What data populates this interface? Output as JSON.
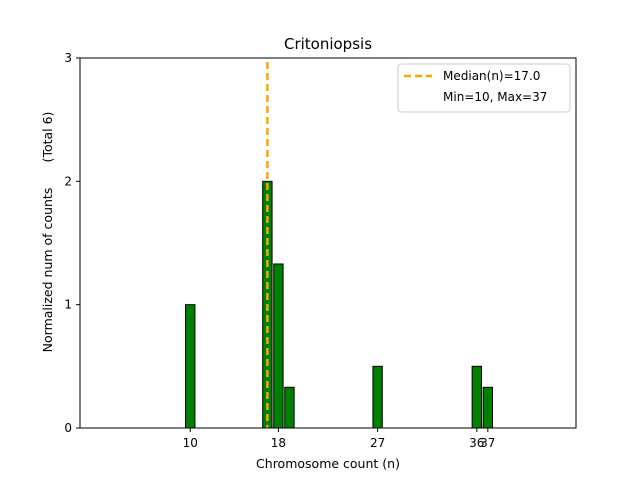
{
  "chart_data": {
    "type": "bar",
    "title": "Critoniopsis",
    "xlabel": "Chromosome count (n)",
    "ylabel": "Normalized num of counts",
    "ylabel_note": "(Total 6)",
    "xlim": [
      0,
      45
    ],
    "ylim": [
      0,
      3
    ],
    "x_ticks": [
      10,
      18,
      27,
      36,
      37
    ],
    "y_ticks": [
      0,
      1,
      2,
      3
    ],
    "bar_color": "#008000",
    "bar_edge_color": "#000000",
    "bars": [
      {
        "x": 10,
        "value": 1.0
      },
      {
        "x": 17,
        "value": 2.0
      },
      {
        "x": 18,
        "value": 1.33
      },
      {
        "x": 19,
        "value": 0.33
      },
      {
        "x": 27,
        "value": 0.5
      },
      {
        "x": 36,
        "value": 0.5
      },
      {
        "x": 37,
        "value": 0.33
      }
    ],
    "median": {
      "value": 17.0,
      "color": "#FFA500"
    },
    "legend": {
      "position": "top-right",
      "entries": [
        "Median(n)=17.0",
        "Min=10, Max=37"
      ]
    }
  }
}
